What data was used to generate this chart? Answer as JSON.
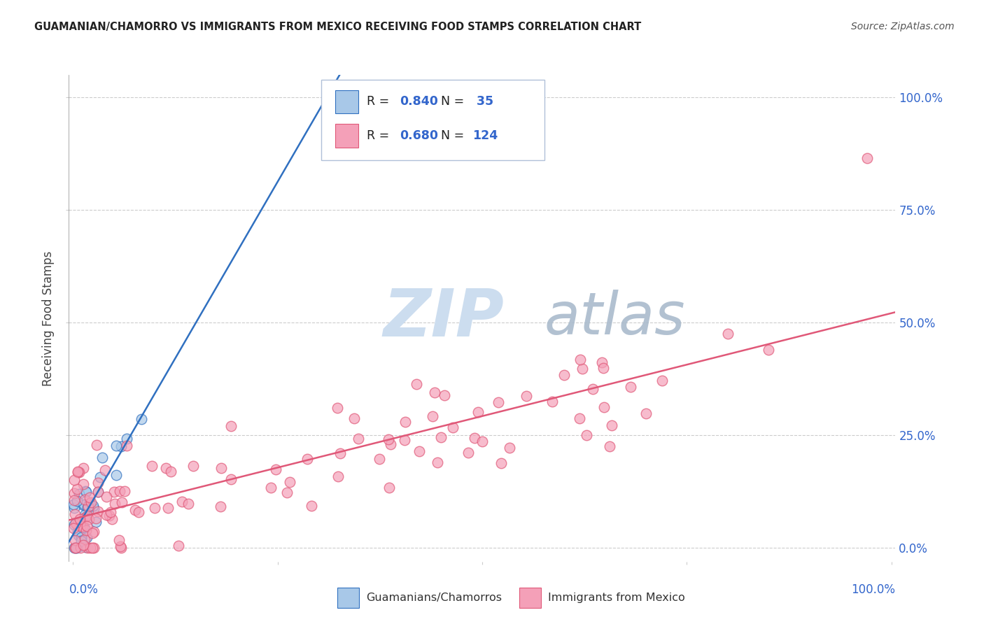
{
  "title": "GUAMANIAN/CHAMORRO VS IMMIGRANTS FROM MEXICO RECEIVING FOOD STAMPS CORRELATION CHART",
  "source": "Source: ZipAtlas.com",
  "ylabel": "Receiving Food Stamps",
  "yticks": [
    "0.0%",
    "25.0%",
    "50.0%",
    "75.0%",
    "100.0%"
  ],
  "ytick_vals": [
    0.0,
    0.25,
    0.5,
    0.75,
    1.0
  ],
  "color_blue": "#a8c8e8",
  "color_pink": "#f4a0b8",
  "color_blue_line": "#3070c0",
  "color_pink_line": "#e05878",
  "color_blue_text": "#3366cc",
  "watermark_zip_color": "#ccddef",
  "watermark_atlas_color": "#aabbcc",
  "background_color": "#ffffff",
  "legend_box_color": "#e8eef5"
}
